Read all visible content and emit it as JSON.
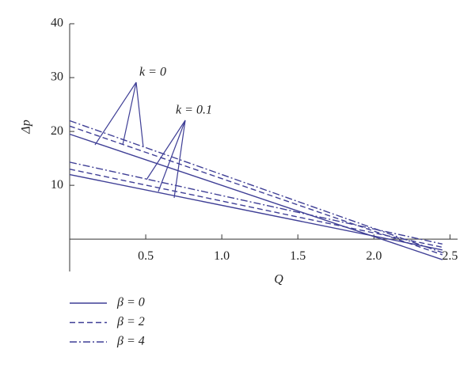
{
  "chart_data": {
    "type": "line",
    "x_label": "Q",
    "y_label": "Δp",
    "x": [
      0,
      2.45
    ],
    "series": [
      {
        "color": "#3f3f96",
        "dash": "solid",
        "values": [
          19.5,
          -3.8
        ]
      },
      {
        "color": "#3f3f96",
        "dash": "dashed",
        "values": [
          21,
          -2.9
        ]
      },
      {
        "color": "#3f3f96",
        "dash": "dashdot",
        "values": [
          22,
          -2.5
        ]
      },
      {
        "color": "#3f3f96",
        "dash": "solid",
        "values": [
          12,
          -2
        ]
      },
      {
        "color": "#3f3f96",
        "dash": "dashed",
        "values": [
          13,
          -1.5
        ]
      },
      {
        "color": "#3f3f96",
        "dash": "dashdot",
        "values": [
          14.3,
          -0.9
        ]
      }
    ],
    "annotations": [
      {
        "text": "k = 0"
      },
      {
        "text": "k = 0.1"
      }
    ],
    "legend": [
      {
        "label": "β = 0",
        "dash": "solid"
      },
      {
        "label": "β = 2",
        "dash": "dashed"
      },
      {
        "label": "β = 4",
        "dash": "dashdot"
      }
    ],
    "xlim": [
      0,
      2.55
    ],
    "ylim": [
      -6,
      40
    ],
    "xticks": [
      0.5,
      {
        "value": 1,
        "label": "1.0"
      },
      1.5,
      {
        "value": 2,
        "label": "2.0"
      },
      2.5
    ],
    "yticks": [
      10,
      20,
      30,
      40
    ]
  }
}
